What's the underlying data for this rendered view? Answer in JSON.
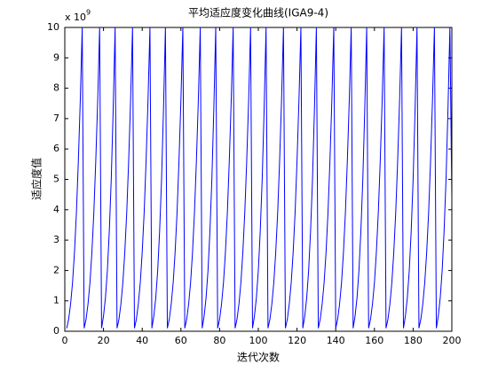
{
  "chart_data": {
    "type": "line",
    "title": "平均适应度变化曲线(IGA9-4)",
    "xlabel": "迭代次数",
    "ylabel": "适应度值",
    "y_multiplier": "x 10",
    "y_exponent": "9",
    "xlim": [
      0,
      200
    ],
    "xticks": [
      0,
      20,
      40,
      60,
      80,
      100,
      120,
      140,
      160,
      180,
      200
    ],
    "ylim": [
      0,
      10
    ],
    "yticks": [
      0,
      1,
      2,
      3,
      4,
      5,
      6,
      7,
      8,
      9,
      10
    ],
    "grid": false,
    "x": [
      1,
      2,
      3,
      4,
      5,
      6,
      7,
      8,
      9,
      10,
      11,
      12,
      13,
      14,
      15,
      16,
      17,
      18,
      19,
      20,
      21,
      22,
      23,
      24,
      25,
      26,
      27,
      28,
      29,
      30,
      31,
      32,
      33,
      34,
      35,
      36,
      37,
      38,
      39,
      40,
      41,
      42,
      43,
      44,
      45,
      46,
      47,
      48,
      49,
      50,
      51,
      52,
      53,
      54,
      55,
      56,
      57,
      58,
      59,
      60,
      61,
      62,
      63,
      64,
      65,
      66,
      67,
      68,
      69,
      70,
      71,
      72,
      73,
      74,
      75,
      76,
      77,
      78,
      79,
      80,
      81,
      82,
      83,
      84,
      85,
      86,
      87,
      88,
      89,
      90,
      91,
      92,
      93,
      94,
      95,
      96,
      97,
      98,
      99,
      100,
      101,
      102,
      103,
      104,
      105,
      106,
      107,
      108,
      109,
      110,
      111,
      112,
      113,
      114,
      115,
      116,
      117,
      118,
      119,
      120,
      121,
      122,
      123,
      124,
      125,
      126,
      127,
      128,
      129,
      130,
      131,
      132,
      133,
      134,
      135,
      136,
      137,
      138,
      139,
      140,
      141,
      142,
      143,
      144,
      145,
      146,
      147,
      148,
      149,
      150,
      151,
      152,
      153,
      154,
      155,
      156,
      157,
      158,
      159,
      160,
      161,
      162,
      163,
      164,
      165,
      166,
      167,
      168,
      169,
      170,
      171,
      172,
      173,
      174,
      175,
      176,
      177,
      178,
      179,
      180,
      181,
      182,
      183,
      184,
      185,
      186,
      187,
      188,
      189,
      190,
      191,
      192,
      193,
      194,
      195,
      196,
      197,
      198,
      199,
      200
    ],
    "series": [
      {
        "color": "#0000ff",
        "values": [
          0.1,
          0.4,
          0.9,
          1.6,
          2.6,
          3.9,
          5.6,
          7.6,
          10,
          0.1,
          0.4,
          0.9,
          1.6,
          2.6,
          3.9,
          5.6,
          7.6,
          10,
          0.1,
          0.5,
          1.1,
          2,
          3.3,
          5,
          7.3,
          10,
          0.1,
          0.4,
          0.9,
          1.6,
          2.6,
          3.9,
          5.6,
          7.6,
          10,
          0.1,
          0.4,
          0.9,
          1.6,
          2.6,
          3.9,
          5.6,
          7.6,
          10,
          0.1,
          0.5,
          1.1,
          2,
          3.3,
          5,
          7.3,
          10,
          0.1,
          0.4,
          0.9,
          1.6,
          2.6,
          3.9,
          5.6,
          7.6,
          10,
          0.1,
          0.4,
          0.9,
          1.6,
          2.6,
          3.9,
          5.6,
          7.6,
          10,
          0.1,
          0.5,
          1.1,
          2,
          3.3,
          5,
          7.3,
          10,
          0.1,
          0.4,
          0.9,
          1.6,
          2.6,
          3.9,
          5.6,
          7.6,
          10,
          0.1,
          0.4,
          0.9,
          1.6,
          2.6,
          3.9,
          5.6,
          7.6,
          10,
          0.1,
          0.5,
          1.1,
          2,
          3.3,
          5,
          7.3,
          10,
          0.1,
          0.4,
          0.9,
          1.6,
          2.6,
          3.9,
          5.6,
          7.6,
          10,
          0.1,
          0.4,
          0.9,
          1.6,
          2.6,
          3.9,
          5.6,
          7.6,
          10,
          0.1,
          0.5,
          1.1,
          2,
          3.3,
          5,
          7.3,
          10,
          0.1,
          0.4,
          0.9,
          1.6,
          2.6,
          3.9,
          5.6,
          7.6,
          10,
          0.1,
          0.4,
          0.9,
          1.6,
          2.6,
          3.9,
          5.6,
          7.6,
          10,
          0.1,
          0.5,
          1.1,
          2,
          3.3,
          5,
          7.3,
          10,
          0.1,
          0.4,
          0.9,
          1.6,
          2.6,
          3.9,
          5.6,
          7.6,
          10,
          0.1,
          0.4,
          0.9,
          1.6,
          2.6,
          3.9,
          5.6,
          7.6,
          10,
          0.1,
          0.5,
          1.1,
          2,
          3.3,
          5,
          7.3,
          10,
          0.1,
          0.4,
          0.9,
          1.6,
          2.6,
          3.9,
          5.6,
          7.6,
          10,
          0.1,
          0.5,
          1.1,
          2,
          3.3,
          5,
          7.3,
          10,
          4.3
        ]
      }
    ]
  }
}
